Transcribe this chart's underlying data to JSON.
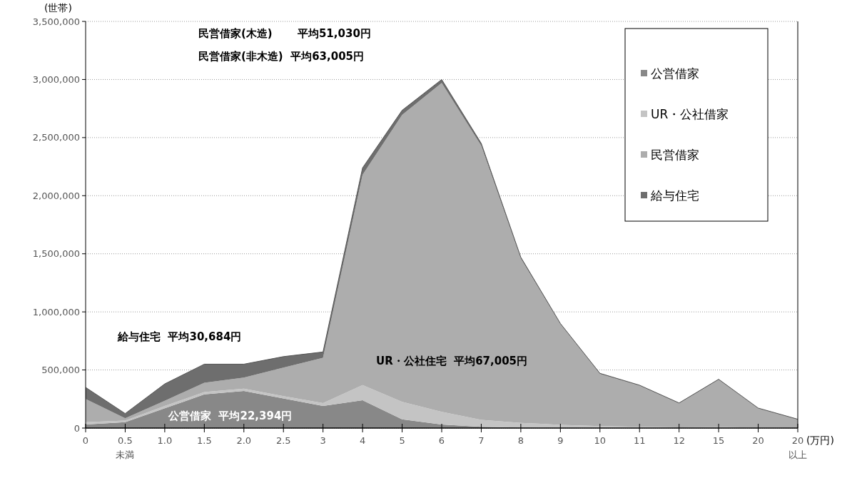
{
  "chart_data": {
    "type": "area",
    "stacked": true,
    "xlabel": "(万円)",
    "ylabel": "(世帯)",
    "categories": [
      "0",
      "0.5\n未満",
      "1.0",
      "1.5",
      "2.0",
      "2.5",
      "3",
      "4",
      "5",
      "6",
      "7",
      "8",
      "9",
      "10",
      "11",
      "12",
      "15",
      "20",
      "20\n以上"
    ],
    "series": [
      {
        "name": "公営借家",
        "color": "#888888",
        "values": [
          30000,
          50000,
          170000,
          290000,
          320000,
          255000,
          190000,
          240000,
          75000,
          30000,
          10000,
          5000,
          3000,
          2000,
          1000,
          0,
          0,
          0,
          0
        ]
      },
      {
        "name": "UR・公社借家",
        "color": "#c4c4c4",
        "values": [
          20000,
          15000,
          20000,
          20000,
          20000,
          20000,
          25000,
          130000,
          150000,
          110000,
          60000,
          40000,
          25000,
          15000,
          10000,
          6000,
          8000,
          4000,
          2000
        ]
      },
      {
        "name": "民営借家",
        "color": "#adadad",
        "values": [
          200000,
          20000,
          45000,
          80000,
          95000,
          245000,
          390000,
          1810000,
          2470000,
          2830000,
          2360000,
          1415000,
          867000,
          450000,
          355000,
          208000,
          410000,
          167000,
          73000
        ]
      },
      {
        "name": "給与住宅",
        "color": "#6e6e6e",
        "values": [
          100000,
          40000,
          145000,
          160000,
          115000,
          95000,
          50000,
          60000,
          40000,
          30000,
          20000,
          10000,
          5000,
          4000,
          3000,
          2000,
          2000,
          1000,
          1000
        ]
      }
    ],
    "ylim": [
      0,
      3500000
    ],
    "yticks": [
      {
        "value": 0,
        "label": "0"
      },
      {
        "value": 500000,
        "label": "500,000"
      },
      {
        "value": 1000000,
        "label": "1,000,000"
      },
      {
        "value": 1500000,
        "label": "1,500,000"
      },
      {
        "value": 2000000,
        "label": "2,000,000"
      },
      {
        "value": 2500000,
        "label": "2,500,000"
      },
      {
        "value": 3000000,
        "label": "3,000,000"
      },
      {
        "value": 3500000,
        "label": "3,500,000"
      }
    ],
    "grid": "y",
    "legend": "top right",
    "annotations": [
      "民営借家(木造)　　 平均51,030円",
      "民営借家(非木造)  平均63,005円",
      "給与住宅  平均30,684円",
      "公営借家  平均22,394円",
      "UR・公社住宅  平均67,005円"
    ]
  }
}
